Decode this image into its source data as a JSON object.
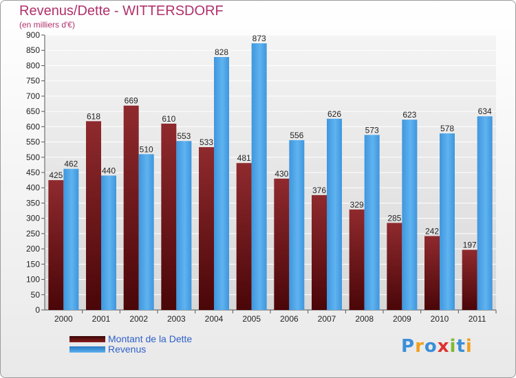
{
  "chart_data": {
    "type": "bar",
    "title": "Revenus/Dette - WITTERSDORF",
    "subtitle": "(en milliers d'€)",
    "categories": [
      "2000",
      "2001",
      "2002",
      "2003",
      "2004",
      "2005",
      "2006",
      "2007",
      "2008",
      "2009",
      "2010",
      "2011"
    ],
    "series": [
      {
        "name": "Montant de la Dette",
        "color": "#7a1518",
        "values": [
          425,
          618,
          669,
          610,
          533,
          481,
          430,
          376,
          329,
          285,
          242,
          197
        ]
      },
      {
        "name": "Revenus",
        "color": "#4aa3e6",
        "values": [
          462,
          440,
          510,
          553,
          828,
          873,
          556,
          626,
          573,
          623,
          578,
          634
        ]
      }
    ],
    "ylim": [
      0,
      900
    ],
    "yticks": [
      0,
      50,
      100,
      150,
      200,
      250,
      300,
      350,
      400,
      450,
      500,
      550,
      600,
      650,
      700,
      750,
      800,
      850,
      900
    ],
    "grid": true,
    "legend_position": "bottom-left"
  },
  "logo": {
    "letters": [
      "P",
      "r",
      "o",
      "x",
      "i",
      "t",
      "i"
    ],
    "colors": [
      "#3a8fd8",
      "#f0a020",
      "#3a8fd8",
      "#e03030",
      "#80b830",
      "#3a8fd8",
      "#f0a020"
    ]
  }
}
